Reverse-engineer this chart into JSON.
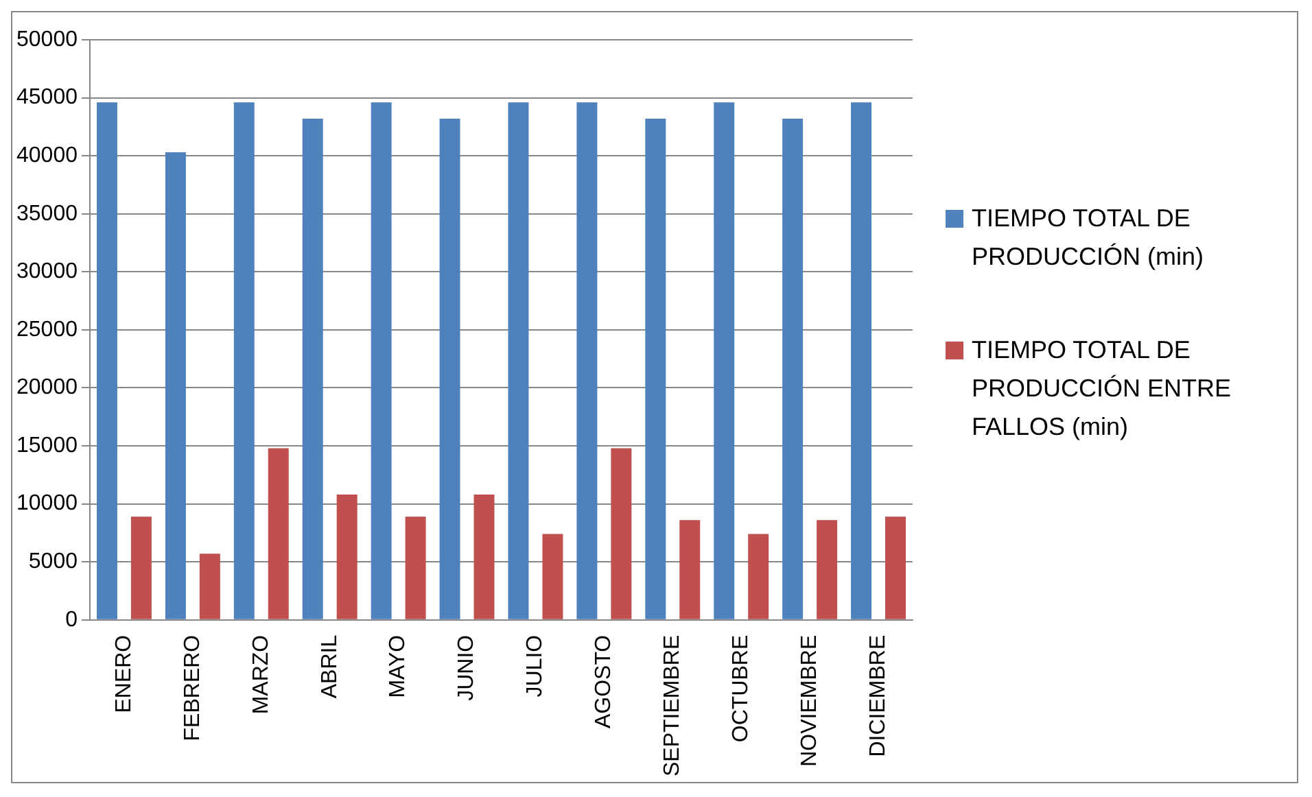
{
  "chart_data": {
    "type": "bar",
    "categories": [
      "ENERO",
      "FEBRERO",
      "MARZO",
      "ABRIL",
      "MAYO",
      "JUNIO",
      "JULIO",
      "AGOSTO",
      "SEPTIEMBRE",
      "OCTUBRE",
      "NOVIEMBRE",
      "DICIEMBRE"
    ],
    "series": [
      {
        "name": "TIEMPO TOTAL DE PRODUCCIÓN (min)",
        "color": "#4f81bd",
        "values": [
          44600,
          40300,
          44600,
          43200,
          44600,
          43200,
          44600,
          44600,
          43200,
          44600,
          43200,
          44600
        ]
      },
      {
        "name": "TIEMPO TOTAL DE PRODUCCIÓN ENTRE FALLOS (min)",
        "color": "#c0504d",
        "values": [
          8900,
          5700,
          14800,
          10800,
          8900,
          10800,
          7400,
          14800,
          8600,
          7400,
          8600,
          8900
        ]
      }
    ],
    "ylim": [
      0,
      50000
    ],
    "yticks": [
      0,
      5000,
      10000,
      15000,
      20000,
      25000,
      30000,
      35000,
      40000,
      45000,
      50000
    ],
    "grid": "y",
    "legend": "right"
  }
}
